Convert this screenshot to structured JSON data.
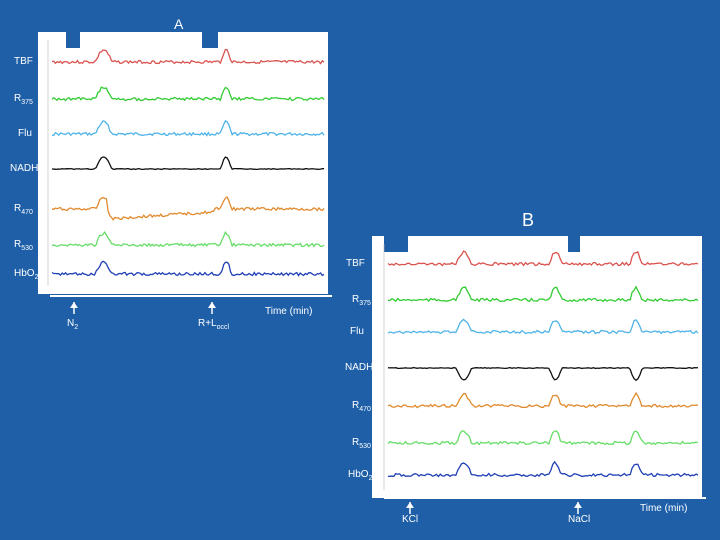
{
  "panels": [
    {
      "label": "A",
      "traces": [
        {
          "name": "TBF",
          "sub": "",
          "color": "#d9534f"
        },
        {
          "name": "R",
          "sub": "375",
          "color": "#33cc33"
        },
        {
          "name": "Flu",
          "sub": "",
          "color": "#4fb3e8"
        },
        {
          "name": "NADH",
          "sub": "",
          "color": "#111111"
        },
        {
          "name": "R",
          "sub": "470",
          "color": "#e08a2e"
        },
        {
          "name": "R",
          "sub": "530",
          "color": "#66dd66"
        },
        {
          "name": "HbO",
          "sub": "2",
          "color": "#1f3fb4"
        }
      ],
      "events": [
        {
          "name": "N",
          "sub": "2"
        },
        {
          "name": "R+L",
          "sub": "occl"
        }
      ],
      "xlabel": "Time (min)"
    },
    {
      "label": "B",
      "traces": [
        {
          "name": "TBF",
          "sub": "",
          "color": "#d9534f"
        },
        {
          "name": "R",
          "sub": "375",
          "color": "#33cc33"
        },
        {
          "name": "Flu",
          "sub": "",
          "color": "#4fb3e8"
        },
        {
          "name": "NADH",
          "sub": "",
          "color": "#111111"
        },
        {
          "name": "R",
          "sub": "470",
          "color": "#e08a2e"
        },
        {
          "name": "R",
          "sub": "530",
          "color": "#66dd66"
        },
        {
          "name": "HbO",
          "sub": "2",
          "color": "#1f3fb4"
        }
      ],
      "events": [
        {
          "name": "KCl",
          "sub": ""
        },
        {
          "name": "NaCl",
          "sub": ""
        }
      ],
      "xlabel": "Time (min)"
    }
  ],
  "chart_data": {
    "type": "line",
    "panels": [
      "A",
      "B"
    ],
    "series_names": [
      "TBF",
      "R375",
      "Flu",
      "NADH",
      "R470",
      "R530",
      "HbO2"
    ],
    "legend": "none"
  }
}
